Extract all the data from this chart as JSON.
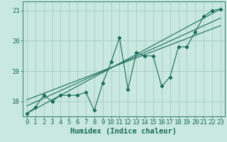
{
  "xlabel": "Humidex (Indice chaleur)",
  "bg_color": "#c8e8e0",
  "grid_color": "#a8ccc4",
  "line_color": "#1a6b5a",
  "ylim": [
    17.5,
    21.3
  ],
  "xlim": [
    -0.5,
    23.5
  ],
  "yticks": [
    18,
    19,
    20,
    21
  ],
  "xticks": [
    0,
    1,
    2,
    3,
    4,
    5,
    6,
    7,
    8,
    9,
    10,
    11,
    12,
    13,
    14,
    15,
    16,
    17,
    18,
    19,
    20,
    21,
    22,
    23
  ],
  "main_data": [
    17.6,
    17.8,
    18.2,
    18.0,
    18.2,
    18.2,
    18.2,
    18.3,
    17.7,
    18.6,
    19.3,
    20.1,
    18.4,
    19.6,
    19.5,
    19.5,
    18.5,
    18.8,
    19.8,
    19.8,
    20.3,
    20.8,
    21.0,
    21.05
  ],
  "trend1_x": [
    0,
    23
  ],
  "trend1_y": [
    17.6,
    21.05
  ],
  "trend2_x": [
    0,
    23
  ],
  "trend2_y": [
    17.85,
    20.75
  ],
  "trend3_x": [
    0,
    23
  ],
  "trend3_y": [
    18.05,
    20.5
  ],
  "tick_fontsize": 6.5,
  "label_fontsize": 7.5
}
